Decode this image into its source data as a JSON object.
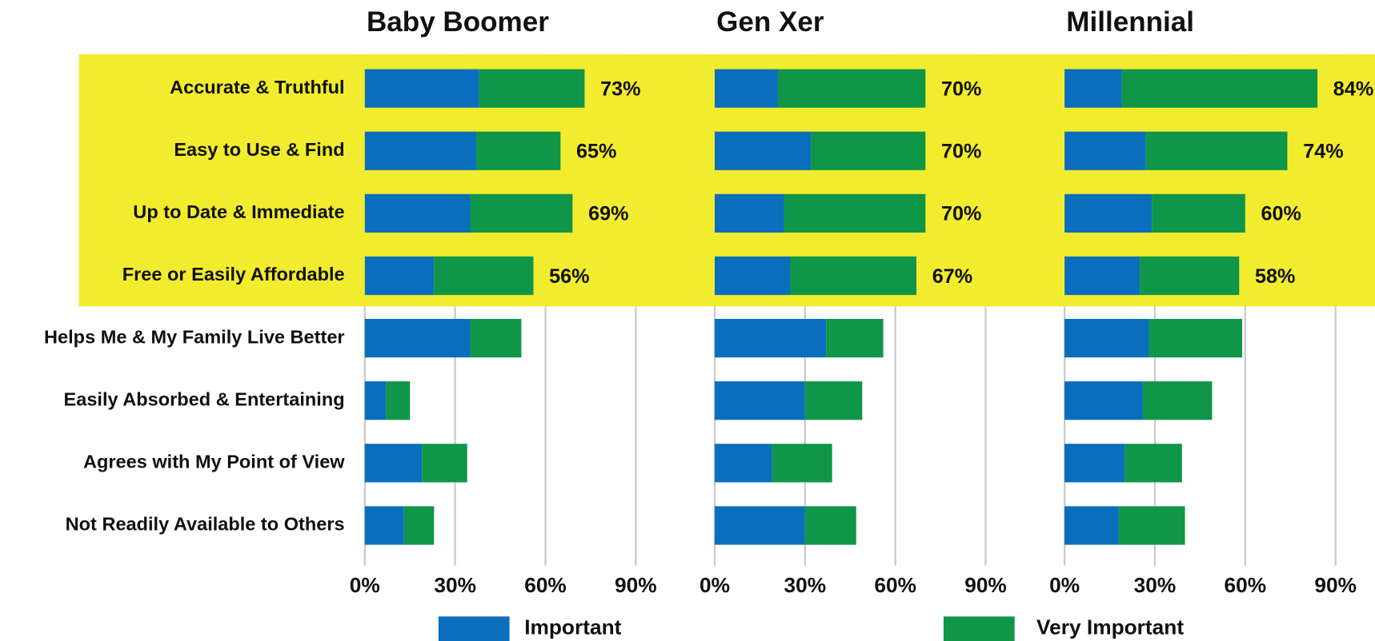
{
  "chart_data": {
    "type": "bar",
    "orientation": "horizontal",
    "stacked": true,
    "categories": [
      "Accurate & Truthful",
      "Easy to Use & Find",
      "Up to Date & Immediate",
      "Free or Easily Affordable",
      "Helps Me & My Family Live Better",
      "Easily Absorbed & Entertaining",
      "Agrees with My Point of View",
      "Not Readily Available to Others"
    ],
    "legend": [
      {
        "name": "Important",
        "color": "#0a6ebd"
      },
      {
        "name": "Very Important",
        "color": "#0f9648"
      }
    ],
    "highlight_color": "#f2ec2e",
    "grid": true,
    "panels": [
      {
        "title": "Baby Boomer",
        "xlim": [
          0,
          90
        ],
        "xticks": [
          {
            "value": 0,
            "label": "0%"
          },
          {
            "value": 30,
            "label": "30%"
          },
          {
            "value": 60,
            "label": "60%"
          },
          {
            "value": 90,
            "label": "90%"
          }
        ],
        "series": [
          {
            "values": [
              38,
              37,
              35,
              23,
              35,
              7,
              19,
              13
            ]
          },
          {
            "values": [
              35,
              28,
              34,
              33,
              17,
              8,
              15,
              10
            ]
          }
        ],
        "total_labels": [
          "73%",
          "65%",
          "69%",
          "56%"
        ]
      },
      {
        "title": "Gen Xer",
        "xlim": [
          0,
          90
        ],
        "xticks": [
          {
            "value": 0,
            "label": "0%"
          },
          {
            "value": 30,
            "label": "30%"
          },
          {
            "value": 60,
            "label": "60%"
          },
          {
            "value": 90,
            "label": "90%"
          }
        ],
        "series": [
          {
            "values": [
              21,
              32,
              23,
              25,
              37,
              30,
              19,
              30
            ]
          },
          {
            "values": [
              49,
              38,
              47,
              42,
              19,
              19,
              20,
              17
            ]
          }
        ],
        "total_labels": [
          "70%",
          "70%",
          "70%",
          "67%"
        ]
      },
      {
        "title": "Millennial",
        "xlim": [
          0,
          90
        ],
        "xticks": [
          {
            "value": 0,
            "label": "0%"
          },
          {
            "value": 30,
            "label": "30%"
          },
          {
            "value": 60,
            "label": "60%"
          },
          {
            "value": 90,
            "label": "90%"
          }
        ],
        "series": [
          {
            "values": [
              19,
              27,
              29,
              25,
              28,
              26,
              20,
              18
            ]
          },
          {
            "values": [
              65,
              47,
              31,
              33,
              31,
              23,
              19,
              22
            ]
          }
        ],
        "total_labels": [
          "84%",
          "74%",
          "60%",
          "58%"
        ]
      }
    ]
  }
}
